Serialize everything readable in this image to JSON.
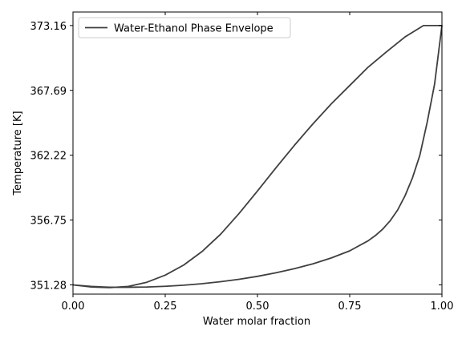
{
  "chart_data": {
    "type": "line",
    "xlabel": "Water molar fraction",
    "ylabel": "Temperature [K]",
    "xlim": [
      0,
      1
    ],
    "ylim": [
      350.5,
      374.3
    ],
    "x_ticks": [
      0,
      0.25,
      0.5,
      0.75,
      1
    ],
    "x_tick_labels": [
      "0.00",
      "0.25",
      "0.50",
      "0.75",
      "1.00"
    ],
    "y_ticks": [
      351.28,
      356.75,
      362.22,
      367.69,
      373.16
    ],
    "y_tick_labels": [
      "351.28",
      "356.75",
      "362.22",
      "367.69",
      "373.16"
    ],
    "grid": false,
    "legend": {
      "position": "top-left",
      "entries": [
        "Water-Ethanol Phase Envelope"
      ]
    },
    "line_color": "#3f3f3f",
    "series": [
      {
        "name": "Water-Ethanol Phase Envelope",
        "x": [
          0.0,
          0.05,
          0.1,
          0.15,
          0.2,
          0.25,
          0.3,
          0.35,
          0.4,
          0.45,
          0.5,
          0.55,
          0.6,
          0.65,
          0.7,
          0.75,
          0.8,
          0.85,
          0.9,
          0.95,
          1.0,
          0.98,
          0.96,
          0.94,
          0.92,
          0.9,
          0.88,
          0.86,
          0.84,
          0.82,
          0.8,
          0.75,
          0.7,
          0.65,
          0.6,
          0.55,
          0.5,
          0.45,
          0.4,
          0.35,
          0.3,
          0.25,
          0.2,
          0.15,
          0.1,
          0.05,
          0.0
        ],
        "y": [
          351.28,
          351.1,
          351.05,
          351.15,
          351.5,
          352.1,
          352.95,
          354.1,
          355.55,
          357.3,
          359.2,
          361.15,
          363.05,
          364.85,
          366.55,
          368.1,
          369.65,
          370.95,
          372.2,
          373.16,
          373.16,
          368.2,
          365.0,
          362.2,
          360.3,
          358.8,
          357.6,
          356.7,
          356.0,
          355.45,
          355.0,
          354.15,
          353.55,
          353.05,
          352.65,
          352.3,
          352.0,
          351.75,
          351.55,
          351.38,
          351.25,
          351.16,
          351.1,
          351.08,
          351.08,
          351.15,
          351.28
        ]
      }
    ]
  }
}
